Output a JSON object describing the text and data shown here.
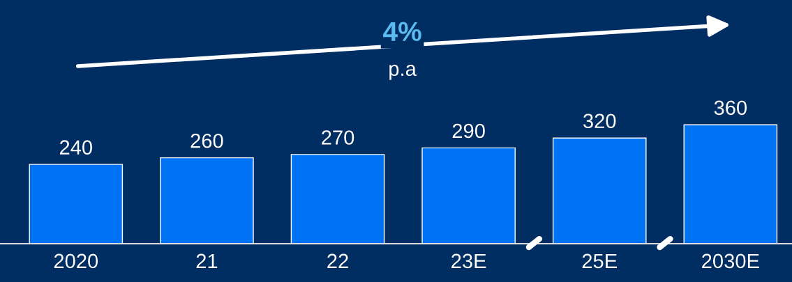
{
  "chart_data": {
    "type": "bar",
    "categories": [
      "2020",
      "21",
      "22",
      "23E",
      "25E",
      "2030E"
    ],
    "values": [
      240,
      260,
      270,
      290,
      320,
      360
    ],
    "color": "#0073f5",
    "data_labels": true,
    "grid": false,
    "annotations": [
      "4%",
      "p.a"
    ]
  }
}
